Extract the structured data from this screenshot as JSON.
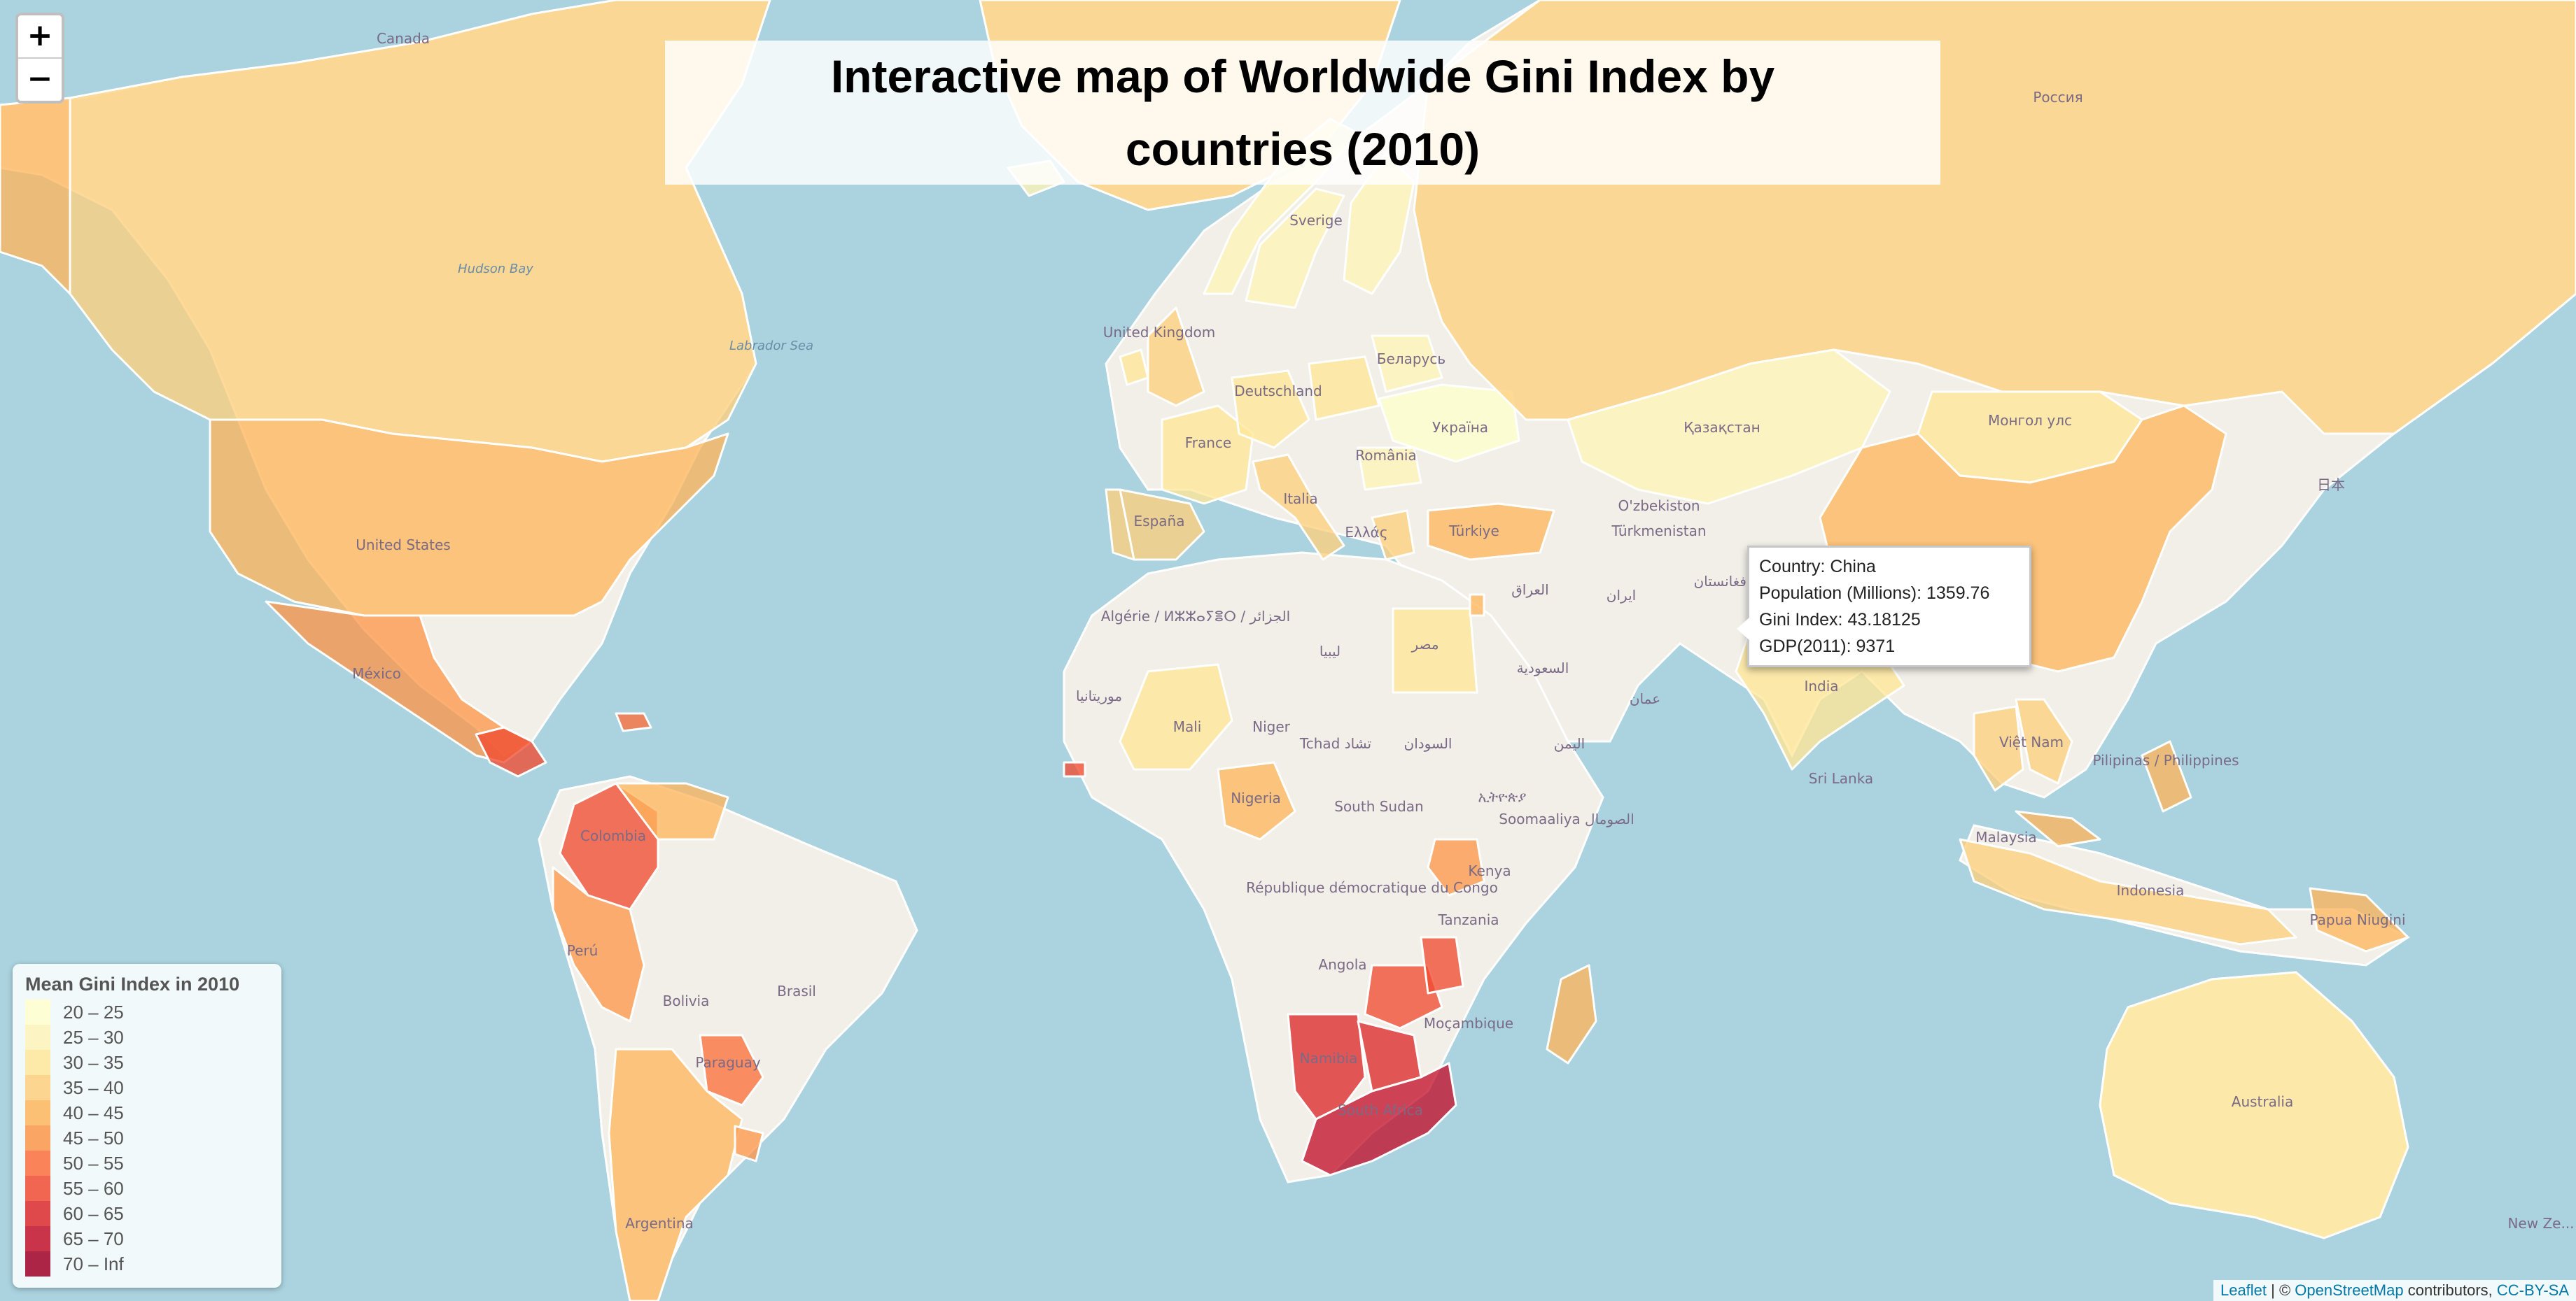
{
  "map": {
    "title": "Interactive map of Worldwide Gini Index by countries (2010)",
    "zoom_in": "+",
    "zoom_out": "−",
    "no_data_color": "#f2efe9",
    "water_color": "#aad3df",
    "countries": [
      {
        "name": "Canada",
        "bin": "35 – 40"
      },
      {
        "name": "Alaska",
        "bin": "40 – 45"
      },
      {
        "name": "Greenland",
        "bin": "35 – 40"
      },
      {
        "name": "United States",
        "bin": "40 – 45"
      },
      {
        "name": "México",
        "bin": "45 – 50"
      },
      {
        "name": "Central America",
        "bin": "55 – 60"
      },
      {
        "name": "Dominican Republic",
        "bin": "50 – 55"
      },
      {
        "name": "Colombia",
        "bin": "55 – 60"
      },
      {
        "name": "Venezuela",
        "bin": "40 – 45"
      },
      {
        "name": "Perú",
        "bin": "45 – 50"
      },
      {
        "name": "Paraguay",
        "bin": "50 – 55"
      },
      {
        "name": "Argentina",
        "bin": "40 – 45"
      },
      {
        "name": "Uruguay",
        "bin": "45 – 50"
      },
      {
        "name": "Iceland",
        "bin": "25 – 30"
      },
      {
        "name": "Norway",
        "bin": "25 – 30"
      },
      {
        "name": "Sverige",
        "bin": "25 – 30"
      },
      {
        "name": "Suomi",
        "bin": "25 – 30"
      },
      {
        "name": "United Kingdom",
        "bin": "35 – 40"
      },
      {
        "name": "Ireland",
        "bin": "30 – 35"
      },
      {
        "name": "France",
        "bin": "30 – 35"
      },
      {
        "name": "España",
        "bin": "35 – 40"
      },
      {
        "name": "Portugal",
        "bin": "35 – 40"
      },
      {
        "name": "Deutschland",
        "bin": "30 – 35"
      },
      {
        "name": "Polska",
        "bin": "30 – 35"
      },
      {
        "name": "Беларусь",
        "bin": "25 – 30"
      },
      {
        "name": "Україна",
        "bin": "20 – 25"
      },
      {
        "name": "Italia",
        "bin": "35 – 40"
      },
      {
        "name": "România",
        "bin": "25 – 30"
      },
      {
        "name": "Ελλάς",
        "bin": "35 – 40"
      },
      {
        "name": "Türkiye",
        "bin": "40 – 45"
      },
      {
        "name": "Россия",
        "bin": "35 – 40"
      },
      {
        "name": "Қазақстан",
        "bin": "25 – 30"
      },
      {
        "name": "Монгол улс",
        "bin": "30 – 35"
      },
      {
        "name": "China",
        "bin": "40 – 45"
      },
      {
        "name": "India",
        "bin": "30 – 35"
      },
      {
        "name": "Việt Nam",
        "bin": "35 – 40"
      },
      {
        "name": "Thailand",
        "bin": "35 – 40"
      },
      {
        "name": "Indonesia",
        "bin": "35 – 40"
      },
      {
        "name": "Malaysia",
        "bin": "40 – 45"
      },
      {
        "name": "Pilipinas",
        "bin": "40 – 45"
      },
      {
        "name": "Papua Niugini",
        "bin": "40 – 45"
      },
      {
        "name": "Australia",
        "bin": "30 – 35"
      },
      {
        "name": "مصر",
        "bin": "30 – 35"
      },
      {
        "name": "Mali",
        "bin": "30 – 35"
      },
      {
        "name": "Nigeria",
        "bin": "40 – 45"
      },
      {
        "name": "Kenya",
        "bin": "45 – 50"
      },
      {
        "name": "Zambia",
        "bin": "55 – 60"
      },
      {
        "name": "Malawi",
        "bin": "55 – 60"
      },
      {
        "name": "Madagascar",
        "bin": "40 – 45"
      },
      {
        "name": "Namibia",
        "bin": "60 – 65"
      },
      {
        "name": "Botswana",
        "bin": "60 – 65"
      },
      {
        "name": "South Africa",
        "bin": "65 – 70"
      },
      {
        "name": "Israel",
        "bin": "40 – 45"
      },
      {
        "name": "Sierra Leone",
        "bin": "55 – 60"
      }
    ],
    "labels": [
      "Canada",
      "Hudson Bay",
      "Labrador Sea",
      "United States",
      "México",
      "Colombia",
      "Perú",
      "Bolivia",
      "Brasil",
      "Paraguay",
      "Argentina",
      "United Kingdom",
      "Sverige",
      "Deutschland",
      "France",
      "España",
      "Italia",
      "România",
      "Ελλάς",
      "Беларусь",
      "Україна",
      "Türkiye",
      "Россия",
      "Қазақстан",
      "O'zbekiston",
      "Türkmenistan",
      "Монгол улс",
      "日本",
      "العراق",
      "ایران",
      "السعودية",
      "عمان",
      "اليمن",
      "India",
      "Việt Nam",
      "Pilipinas / Philippines",
      "Malaysia",
      "Indonesia",
      "Papua Niugini",
      "Australia",
      "New Ze...",
      "Algérie / ⵍⵣⵣⴰⵢⴻⵔ / الجزائر",
      "ليبيا",
      "مصر",
      "موريتانيا",
      "Mali",
      "Niger",
      "Tchad تشاد",
      "السودان",
      "ኢትዮጵያ",
      "South Sudan",
      "Nigeria",
      "Soomaaliya الصومال",
      "Kenya",
      "République démocratique du Congo",
      "Tanzania",
      "Angola",
      "Moçambique",
      "Namibia",
      "South Africa",
      "افغانستان",
      "Sri Lanka"
    ]
  },
  "tooltip": {
    "country": "Country: China",
    "population": "Population (Millions): 1359.76",
    "gini": "Gini Index: 43.18125",
    "gdp": "GDP(2011): 9371"
  },
  "legend": {
    "title": "Mean Gini Index in 2010",
    "bins": [
      {
        "label": "20 – 25",
        "color": "#ffffcc"
      },
      {
        "label": "25 – 30",
        "color": "#fff3b8"
      },
      {
        "label": "30 – 35",
        "color": "#ffe799"
      },
      {
        "label": "35 – 40",
        "color": "#fed07e"
      },
      {
        "label": "40 – 45",
        "color": "#feb65c"
      },
      {
        "label": "45 – 50",
        "color": "#fd974a"
      },
      {
        "label": "50 – 55",
        "color": "#fc6f3c"
      },
      {
        "label": "55 – 60",
        "color": "#f04c31"
      },
      {
        "label": "60 – 65",
        "color": "#dd2a2b"
      },
      {
        "label": "65 – 70",
        "color": "#c3122b"
      },
      {
        "label": "70 – Inf",
        "color": "#a00026"
      }
    ]
  },
  "attribution": {
    "leaflet": "Leaflet",
    "sep": " | © ",
    "osm": "OpenStreetMap",
    "contributors": " contributors, ",
    "license": "CC-BY-SA"
  }
}
